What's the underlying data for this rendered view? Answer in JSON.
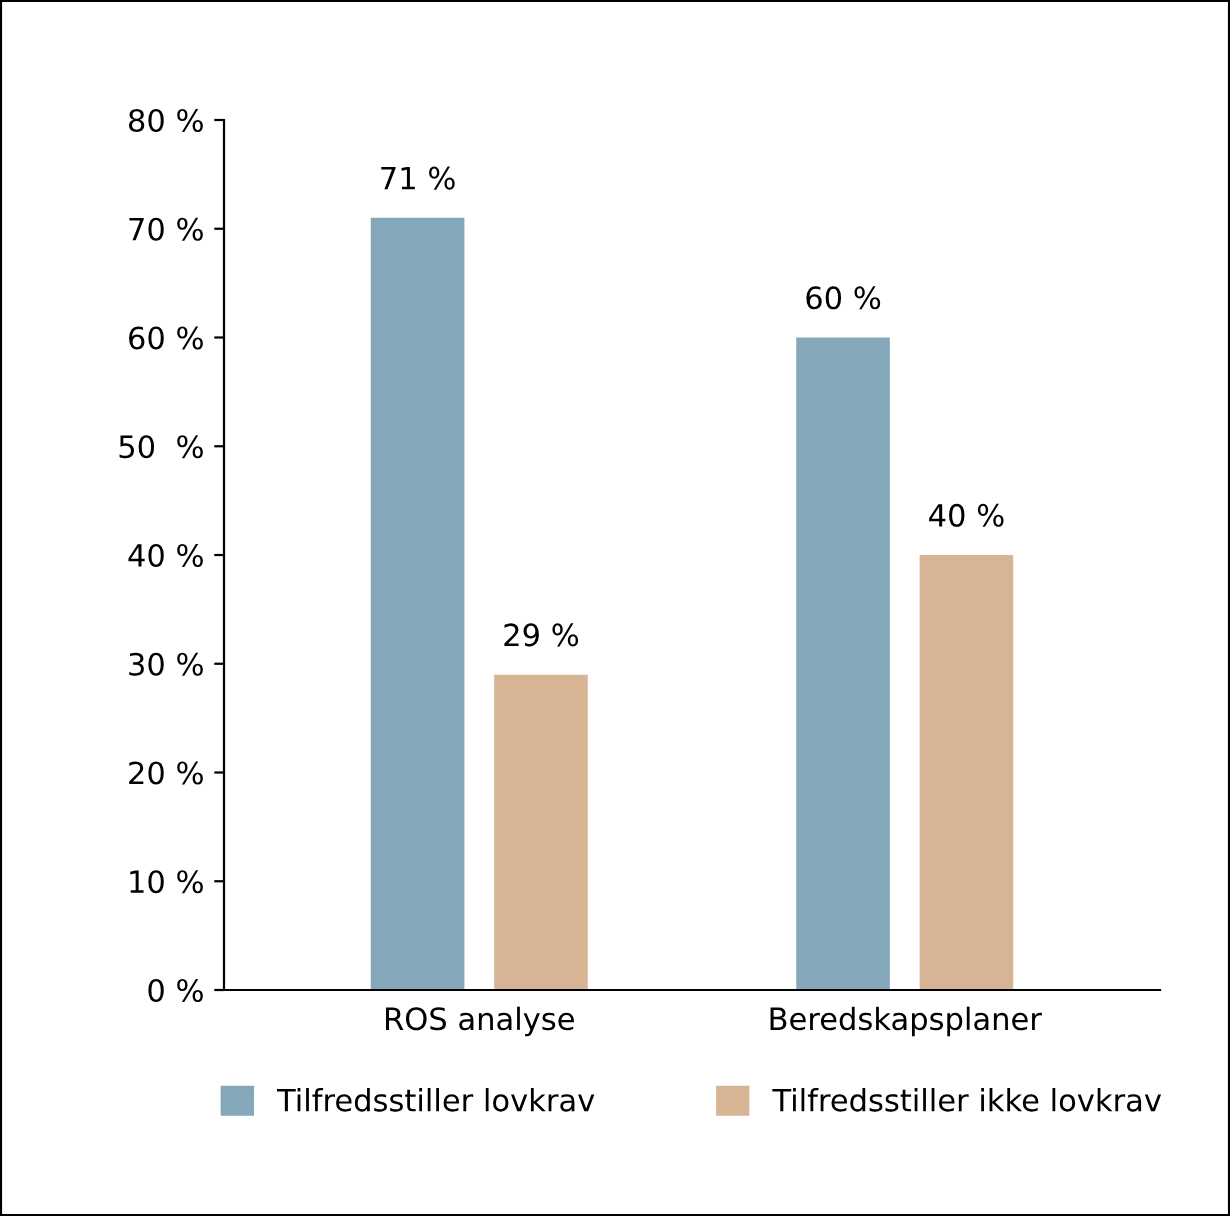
{
  "chart_data": {
    "type": "bar",
    "categories": [
      "ROS analyse",
      "Beredskapsplaner"
    ],
    "series": [
      {
        "name": "Tilfredsstiller lovkrav",
        "color": "#84a8ba",
        "values": [
          71,
          60
        ],
        "value_labels": [
          "71 %",
          "60 %"
        ]
      },
      {
        "name": "Tilfredsstiller ikke lovkrav",
        "color": "#d7b494",
        "values": [
          29,
          40
        ],
        "value_labels": [
          "29 %",
          "40 %"
        ]
      }
    ],
    "ylim": [
      0,
      80
    ],
    "yticks": [
      {
        "value": 0,
        "label": "0 %"
      },
      {
        "value": 10,
        "label": "10 %"
      },
      {
        "value": 20,
        "label": "20 %"
      },
      {
        "value": 30,
        "label": "30 %"
      },
      {
        "value": 40,
        "label": "40 %"
      },
      {
        "value": 50,
        "label": "50  %"
      },
      {
        "value": 60,
        "label": "60 %"
      },
      {
        "value": 70,
        "label": "70 %"
      },
      {
        "value": 80,
        "label": "80 %"
      }
    ],
    "grid": false,
    "legend": "bottom"
  }
}
